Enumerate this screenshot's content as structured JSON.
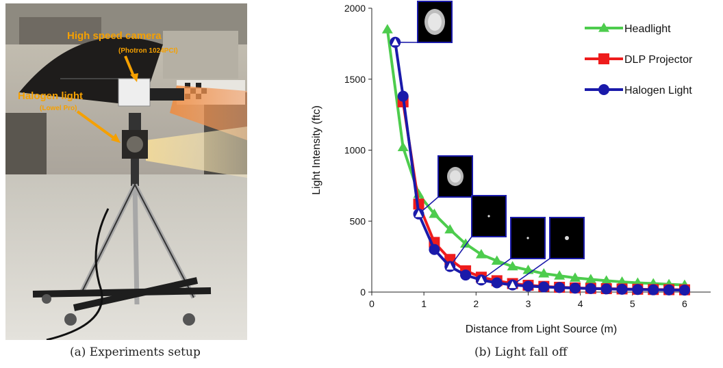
{
  "figure_a": {
    "caption": "(a) Experiments setup",
    "callouts": {
      "camera_label": "High speed camera",
      "camera_model": "(Photron 1024PCI)",
      "light_label": "Halogen light",
      "light_model": "(Lowel Pro)"
    }
  },
  "figure_b": {
    "caption": "(b) Light fall off"
  },
  "chart_data": {
    "type": "line",
    "xlabel": "Distance from Light Source (m)",
    "ylabel": "Light Intensity (ftc)",
    "xlim": [
      0,
      6.5
    ],
    "ylim": [
      0,
      2000
    ],
    "xticks": [
      0,
      1,
      2,
      3,
      4,
      5,
      6
    ],
    "yticks": [
      0,
      500,
      1000,
      1500,
      2000
    ],
    "grid": false,
    "legend_position": "top-right",
    "series": [
      {
        "name": "Headlight",
        "color": "#4dcc4d",
        "marker": "triangle",
        "x": [
          0.3,
          0.6,
          0.9,
          1.2,
          1.5,
          1.8,
          2.1,
          2.4,
          2.7,
          3.0,
          3.3,
          3.6,
          3.9,
          4.2,
          4.5,
          4.8,
          5.1,
          5.4,
          5.7,
          6.0
        ],
        "y": [
          1850,
          1020,
          690,
          550,
          440,
          340,
          265,
          220,
          180,
          155,
          130,
          115,
          100,
          90,
          80,
          72,
          65,
          60,
          55,
          50
        ]
      },
      {
        "name": "DLP Projector",
        "color": "#ee1c1c",
        "marker": "square",
        "x": [
          0.6,
          0.9,
          1.2,
          1.5,
          1.8,
          2.1,
          2.4,
          2.7,
          3.0,
          3.3,
          3.6,
          3.9,
          4.2,
          4.5,
          4.8,
          5.1,
          5.4,
          5.7,
          6.0
        ],
        "y": [
          1340,
          620,
          350,
          230,
          150,
          105,
          80,
          60,
          48,
          40,
          34,
          30,
          26,
          24,
          22,
          20,
          18,
          17,
          16
        ]
      },
      {
        "name": "Halogen Light",
        "color": "#1a1aaa",
        "marker": "circle",
        "x": [
          0.45,
          0.6,
          0.9,
          1.2,
          1.5,
          1.8,
          2.1,
          2.4,
          2.7,
          3.0,
          3.3,
          3.6,
          3.9,
          4.2,
          4.5,
          4.8,
          5.1,
          5.4,
          5.7,
          6.0
        ],
        "y": [
          1760,
          1380,
          550,
          300,
          180,
          120,
          85,
          65,
          50,
          42,
          36,
          32,
          28,
          25,
          22,
          20,
          18,
          16,
          15,
          14
        ]
      }
    ]
  },
  "insets": [
    {
      "spot": "large-soft",
      "x": 0.45,
      "y": 1760
    },
    {
      "spot": "medium-soft",
      "x": 0.9,
      "y": 550
    },
    {
      "spot": "tiny",
      "x": 1.5,
      "y": 180
    },
    {
      "spot": "tiny",
      "x": 2.1,
      "y": 85
    },
    {
      "spot": "small",
      "x": 2.7,
      "y": 50
    }
  ]
}
